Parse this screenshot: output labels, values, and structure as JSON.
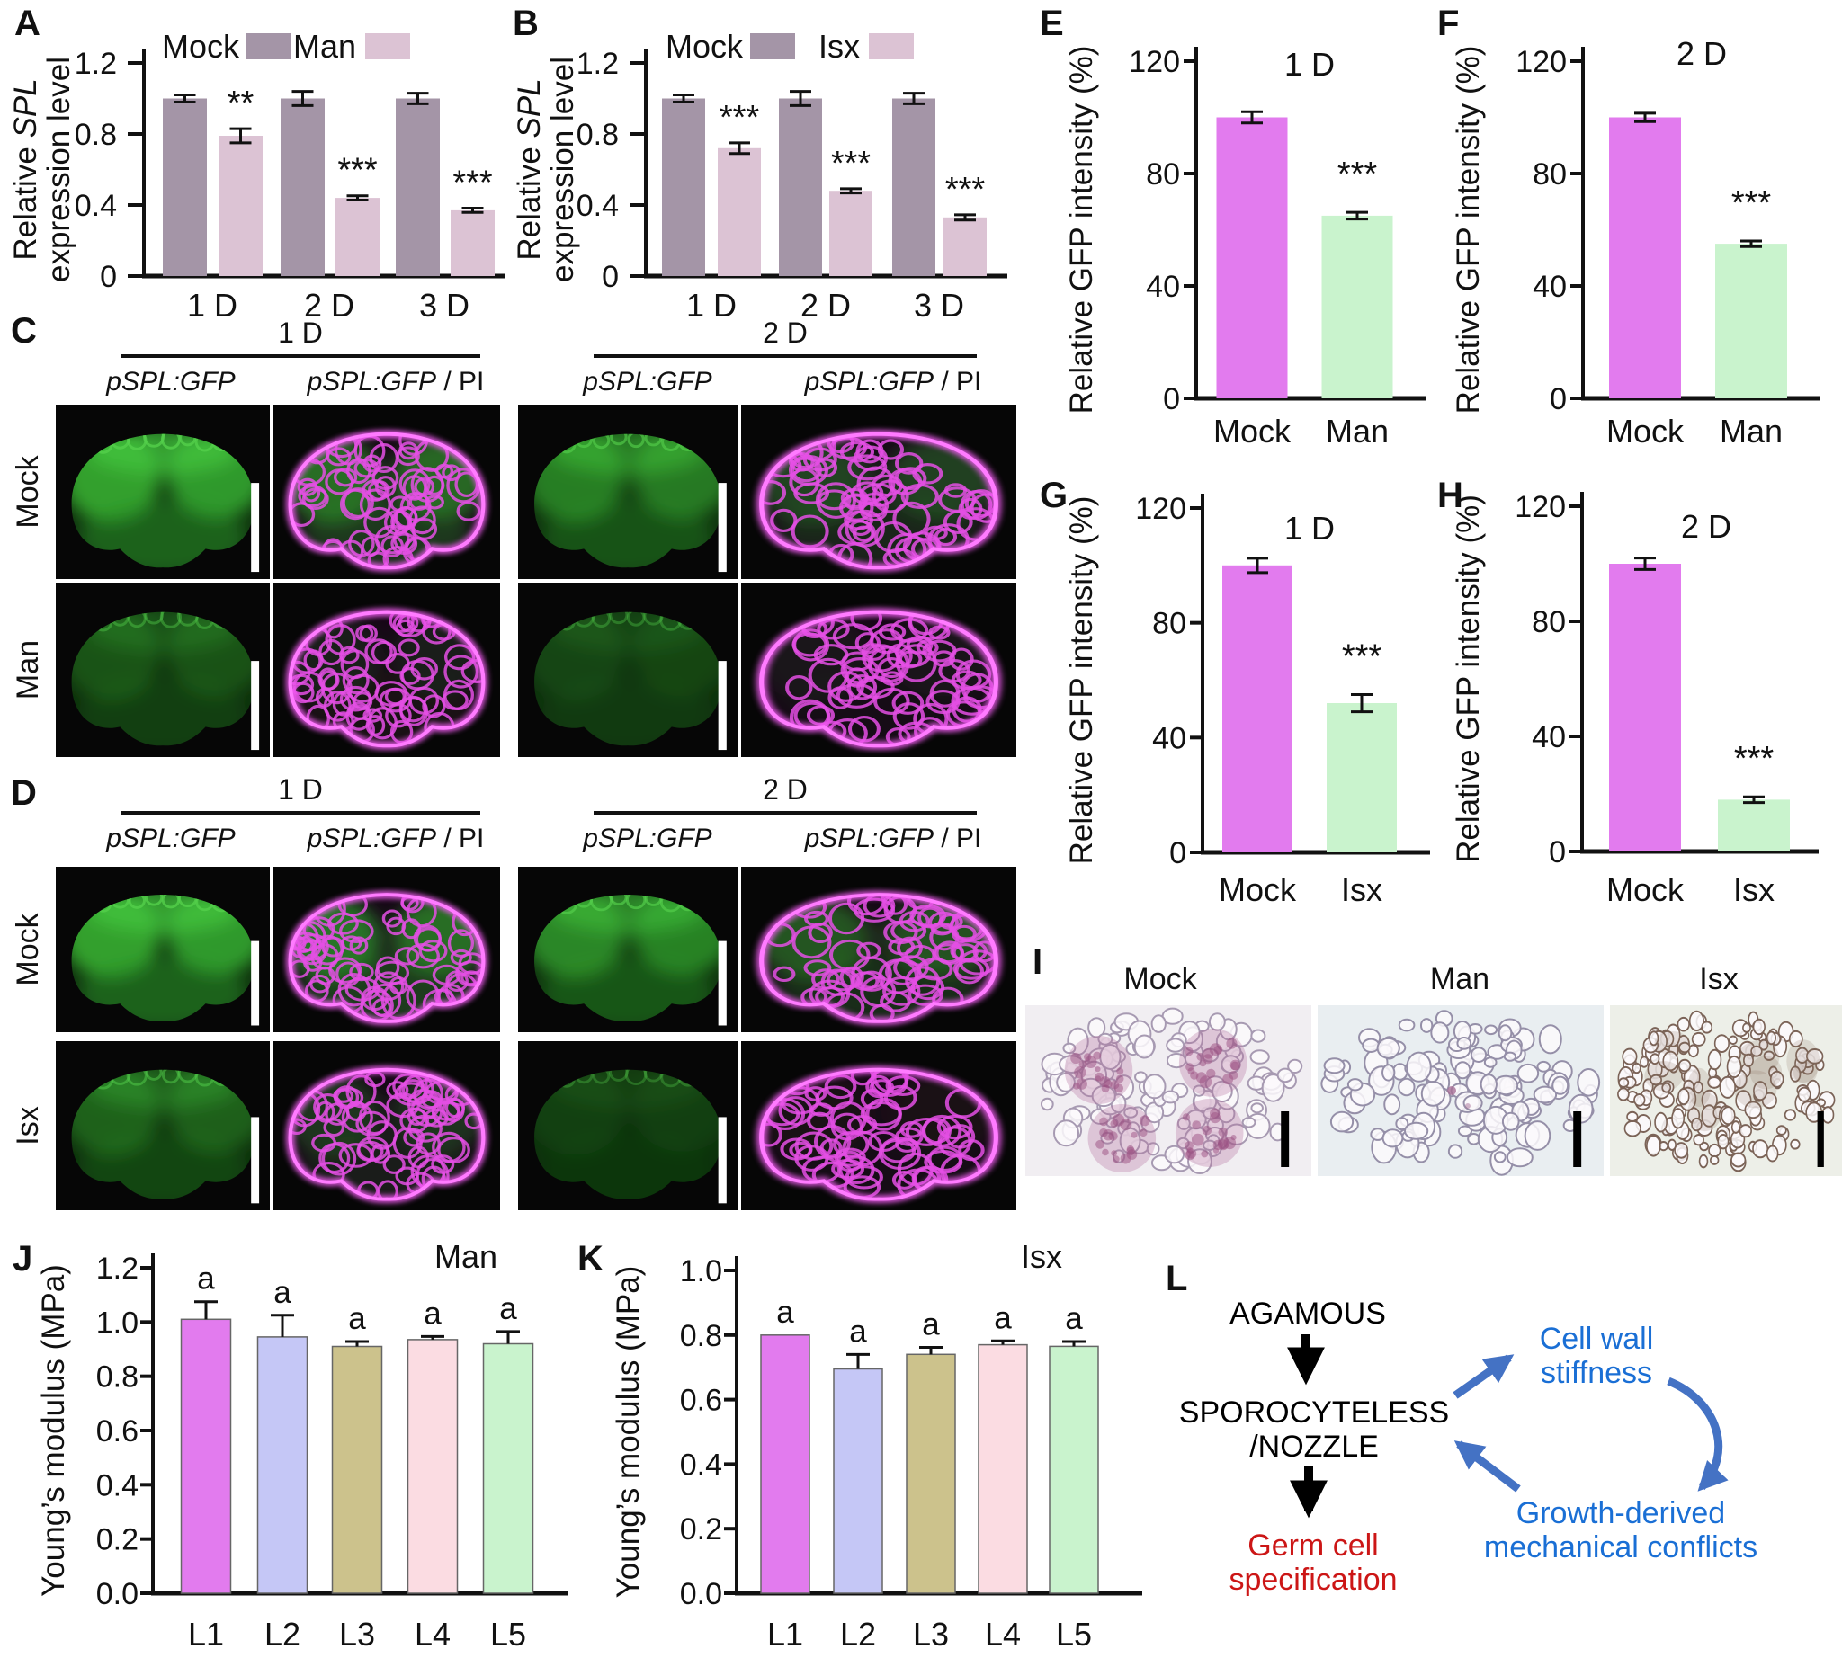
{
  "panels": {
    "A": {
      "label": "A"
    },
    "B": {
      "label": "B"
    },
    "C": {
      "label": "C",
      "group_headers": [
        "1 D",
        "2 D"
      ],
      "col_labels": [
        "pSPL:GFP",
        "pSPL:GFP / PI",
        "pSPL:GFP",
        "pSPL:GFP / PI"
      ],
      "row_labels": [
        "Mock",
        "Man"
      ]
    },
    "D": {
      "label": "D",
      "group_headers": [
        "1 D",
        "2 D"
      ],
      "col_labels": [
        "pSPL:GFP",
        "pSPL:GFP / PI",
        "pSPL:GFP",
        "pSPL:GFP / PI"
      ],
      "row_labels": [
        "Mock",
        "Isx"
      ]
    },
    "E": {
      "label": "E"
    },
    "F": {
      "label": "F"
    },
    "G": {
      "label": "G"
    },
    "H": {
      "label": "H"
    },
    "I": {
      "label": "I",
      "col_labels": [
        "Mock",
        "Man",
        "Isx"
      ]
    },
    "J": {
      "label": "J"
    },
    "K": {
      "label": "K"
    },
    "L": {
      "label": "L",
      "node_agamous": "AGAMOUS",
      "node_spl_line1": "SPOROCYTELESS",
      "node_spl_line2": "/NOZZLE",
      "node_germ_line1": "Germ cell",
      "node_germ_line2": "specification",
      "node_cellwall_line1": "Cell wall",
      "node_cellwall_line2": "stiffness",
      "node_growth_line1": "Growth-derived",
      "node_growth_line2": "mechanical conflicts",
      "colors": {
        "pathway_text": "#000000",
        "outcome_text": "#cc1616",
        "mechanics_text": "#1a6fd5",
        "arrow_blue": "#4472c4"
      }
    }
  },
  "chart_data": [
    {
      "id": "A",
      "type": "bar",
      "title": "",
      "ylabel": [
        "Relative SPL",
        "expression level"
      ],
      "italic_token": "SPL",
      "ymax": 1.2,
      "yticks": [
        "0",
        "0.4",
        "0.8",
        "1.2"
      ],
      "categories": [
        "1 D",
        "2 D",
        "3 D"
      ],
      "series": [
        {
          "name": "Mock",
          "color": "#a495a7",
          "values": [
            1.0,
            1.0,
            1.0
          ],
          "errors": [
            0.02,
            0.04,
            0.03
          ]
        },
        {
          "name": "Man",
          "color": "#dcc3d4",
          "values": [
            0.79,
            0.44,
            0.37
          ],
          "errors": [
            0.04,
            0.012,
            0.012
          ]
        }
      ],
      "sig_labels": [
        "**",
        "***",
        "***"
      ],
      "legend": true
    },
    {
      "id": "B",
      "type": "bar",
      "title": "",
      "ylabel": [
        "Relative SPL",
        "expression level"
      ],
      "italic_token": "SPL",
      "ymax": 1.2,
      "yticks": [
        "0",
        "0.4",
        "0.8",
        "1.2"
      ],
      "categories": [
        "1 D",
        "2 D",
        "3 D"
      ],
      "series": [
        {
          "name": "Mock",
          "color": "#a495a7",
          "values": [
            1.0,
            1.0,
            1.0
          ],
          "errors": [
            0.02,
            0.04,
            0.03
          ]
        },
        {
          "name": "Isx",
          "color": "#dcc3d4",
          "values": [
            0.72,
            0.48,
            0.33
          ],
          "errors": [
            0.03,
            0.012,
            0.015
          ]
        }
      ],
      "sig_labels": [
        "***",
        "***",
        "***"
      ],
      "legend": true
    },
    {
      "id": "E",
      "type": "bar",
      "title": "1 D",
      "ylabel": [
        "Relative GFP intensity (%)"
      ],
      "ymax": 120,
      "yticks": [
        "0",
        "40",
        "80",
        "120"
      ],
      "categories": [
        "Mock",
        "Man"
      ],
      "bars": [
        {
          "color": "#e27bee",
          "value": 100,
          "error": 2
        },
        {
          "color": "#c9f3cd",
          "value": 65,
          "error": 1.2
        }
      ],
      "sig_labels": [
        null,
        "***"
      ]
    },
    {
      "id": "F",
      "type": "bar",
      "title": "2 D",
      "ylabel": [
        "Relative GFP intensity (%)"
      ],
      "ymax": 120,
      "yticks": [
        "0",
        "40",
        "80",
        "120"
      ],
      "categories": [
        "Mock",
        "Man"
      ],
      "bars": [
        {
          "color": "#e27bee",
          "value": 100,
          "error": 1.5
        },
        {
          "color": "#c9f3cd",
          "value": 55,
          "error": 1
        }
      ],
      "sig_labels": [
        null,
        "***"
      ]
    },
    {
      "id": "G",
      "type": "bar",
      "title": "1 D",
      "ylabel": [
        "Relative GFP intensity (%)"
      ],
      "ymax": 120,
      "yticks": [
        "0",
        "40",
        "80",
        "120"
      ],
      "categories": [
        "Mock",
        "Isx"
      ],
      "bars": [
        {
          "color": "#e27bee",
          "value": 100,
          "error": 2.5
        },
        {
          "color": "#c9f3cd",
          "value": 52,
          "error": 3
        }
      ],
      "sig_labels": [
        null,
        "***"
      ]
    },
    {
      "id": "H",
      "type": "bar",
      "title": "2 D",
      "ylabel": [
        "Relative GFP intensity (%)"
      ],
      "ymax": 120,
      "yticks": [
        "0",
        "40",
        "80",
        "120"
      ],
      "categories": [
        "Mock",
        "Isx"
      ],
      "bars": [
        {
          "color": "#e27bee",
          "value": 100,
          "error": 2
        },
        {
          "color": "#c9f3cd",
          "value": 18,
          "error": 1
        }
      ],
      "sig_labels": [
        null,
        "***"
      ]
    },
    {
      "id": "J",
      "type": "bar",
      "title": "Man",
      "ylabel": [
        "Young’s modulus (MPa)"
      ],
      "ymax": 1.2,
      "yticks": [
        "0.0",
        "0.2",
        "0.4",
        "0.6",
        "0.8",
        "1.0",
        "1.2"
      ],
      "categories": [
        "L1",
        "L2",
        "L3",
        "L4",
        "L5"
      ],
      "bars": [
        {
          "color": "#e27bee",
          "value": 1.01,
          "error": 0.065
        },
        {
          "color": "#c5c7f6",
          "value": 0.945,
          "error": 0.08
        },
        {
          "color": "#ccc28c",
          "value": 0.91,
          "error": 0.018
        },
        {
          "color": "#fbdce2",
          "value": 0.935,
          "error": 0.012
        },
        {
          "color": "#c9f3cd",
          "value": 0.92,
          "error": 0.045
        }
      ],
      "letters": [
        "a",
        "a",
        "a",
        "a",
        "a"
      ]
    },
    {
      "id": "K",
      "type": "bar",
      "title": "Isx",
      "ylabel": [
        "Young’s modulus (MPa)"
      ],
      "ymax": 1.0,
      "yticks": [
        "0.0",
        "0.2",
        "0.4",
        "0.6",
        "0.8",
        "1.0"
      ],
      "categories": [
        "L1",
        "L2",
        "L3",
        "L4",
        "L5"
      ],
      "bars": [
        {
          "color": "#e27bee",
          "value": 0.8,
          "error": 0
        },
        {
          "color": "#c5c7f6",
          "value": 0.695,
          "error": 0.045
        },
        {
          "color": "#ccc28c",
          "value": 0.74,
          "error": 0.022
        },
        {
          "color": "#fbdce2",
          "value": 0.77,
          "error": 0.012
        },
        {
          "color": "#c9f3cd",
          "value": 0.765,
          "error": 0.015
        }
      ],
      "letters": [
        "a",
        "a",
        "a",
        "a",
        "a"
      ]
    }
  ],
  "micrographs": {
    "C": {
      "rows": [
        [
          {
            "mode": "gfp",
            "level": 1.0
          },
          {
            "mode": "merge",
            "level": 0.85
          },
          {
            "mode": "gfp",
            "level": 0.7
          },
          {
            "mode": "merge",
            "level": 0.5
          }
        ],
        [
          {
            "mode": "gfp",
            "level": 0.32
          },
          {
            "mode": "merge",
            "level": 0.2
          },
          {
            "mode": "gfp",
            "level": 0.2
          },
          {
            "mode": "merge",
            "level": 0.12
          }
        ]
      ]
    },
    "D": {
      "rows": [
        [
          {
            "mode": "gfp",
            "level": 1.0
          },
          {
            "mode": "merge",
            "level": 0.9
          },
          {
            "mode": "gfp",
            "level": 0.78
          },
          {
            "mode": "merge",
            "level": 0.65
          }
        ],
        [
          {
            "mode": "gfp",
            "level": 0.45
          },
          {
            "mode": "merge",
            "level": 0.38
          },
          {
            "mode": "gfp",
            "level": 0.15
          },
          {
            "mode": "merge",
            "level": 0.1
          }
        ]
      ]
    },
    "I": [
      "stained",
      "unstained",
      "dense"
    ]
  }
}
